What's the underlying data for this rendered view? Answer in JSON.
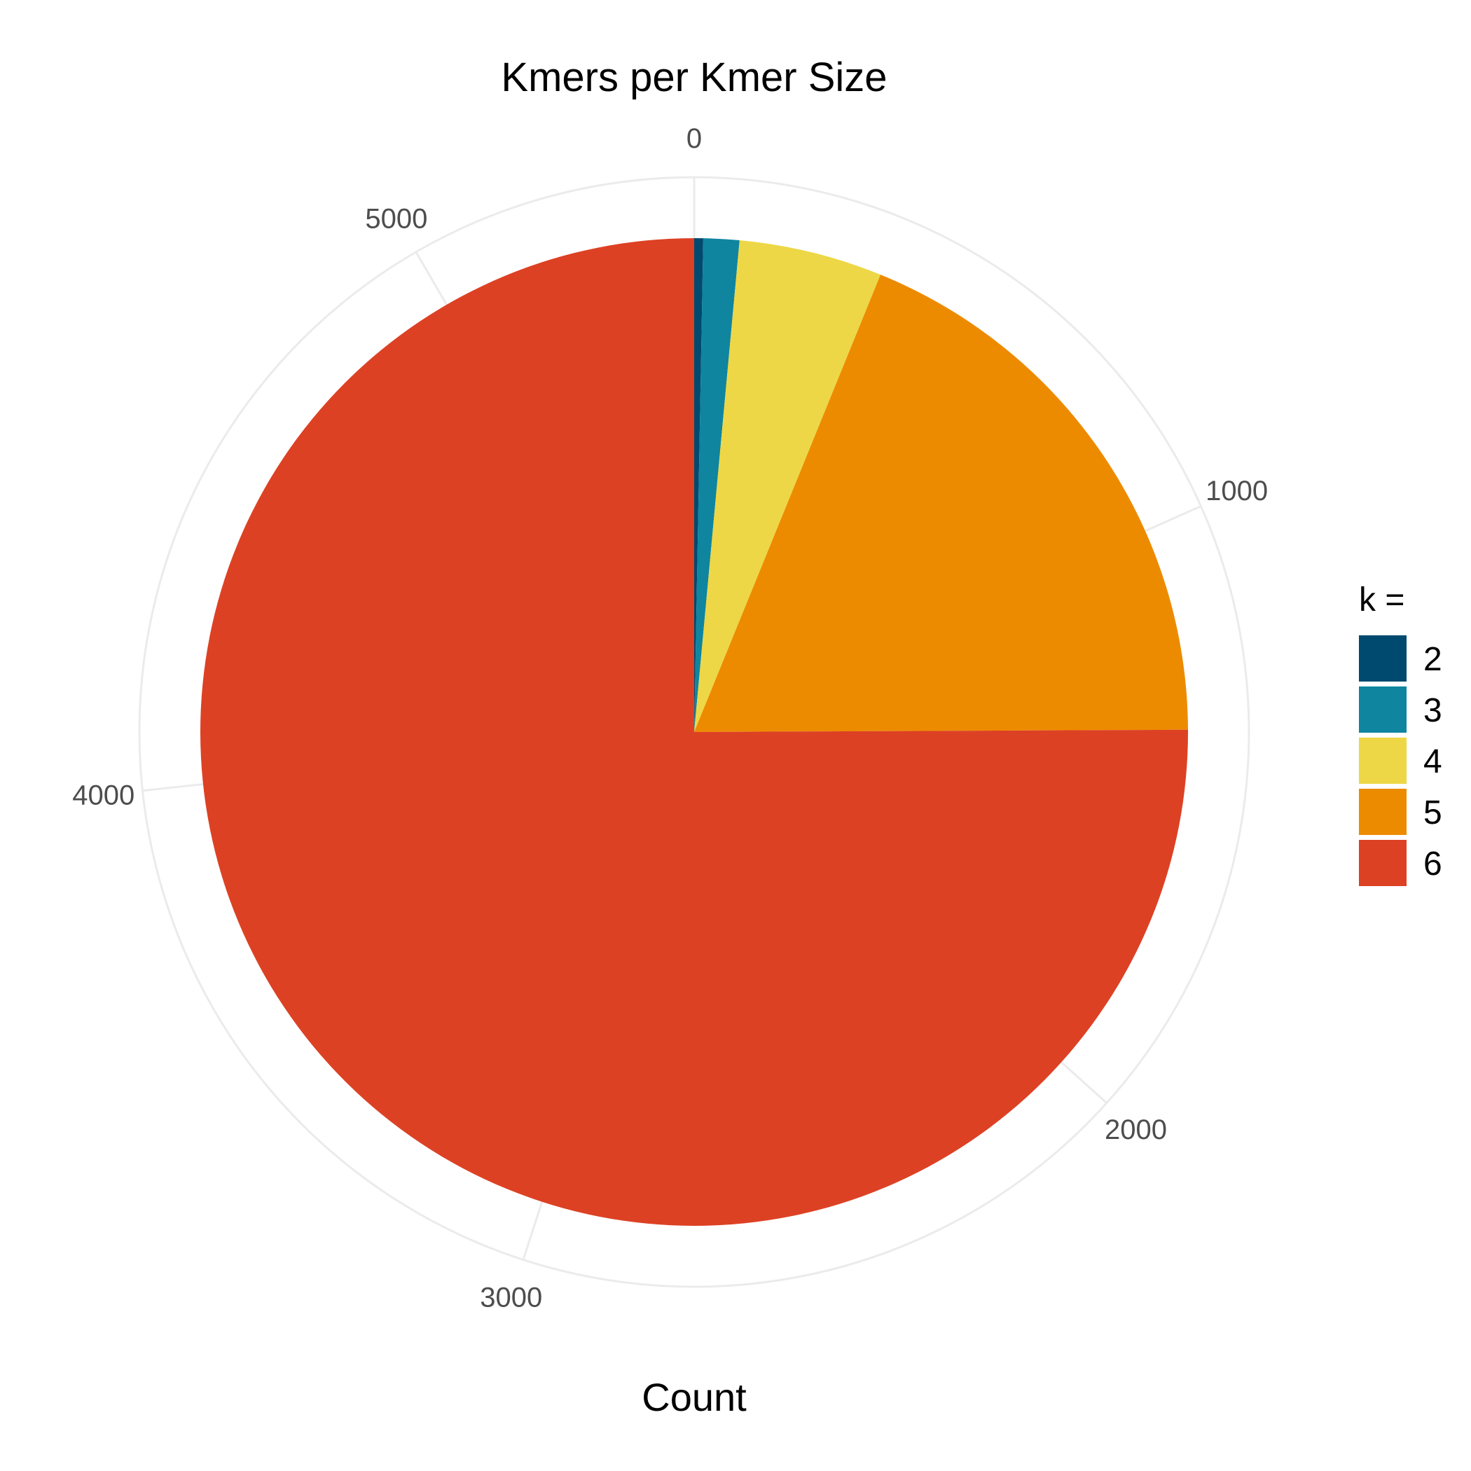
{
  "chart_data": {
    "type": "pie",
    "title": "Kmers per Kmer Size",
    "xlabel": "Count",
    "ylabel": "",
    "axis_ticks": [
      0,
      1000,
      2000,
      3000,
      4000,
      5000
    ],
    "total": 5456,
    "categories": [
      "2",
      "3",
      "4",
      "5",
      "6"
    ],
    "values": [
      16,
      64,
      256,
      1024,
      4096
    ],
    "colors": [
      "#00496f",
      "#0f85a0",
      "#edd746",
      "#ed8b00",
      "#dd4124"
    ],
    "grid": true,
    "legend": {
      "title": "k =",
      "position": "right"
    }
  }
}
